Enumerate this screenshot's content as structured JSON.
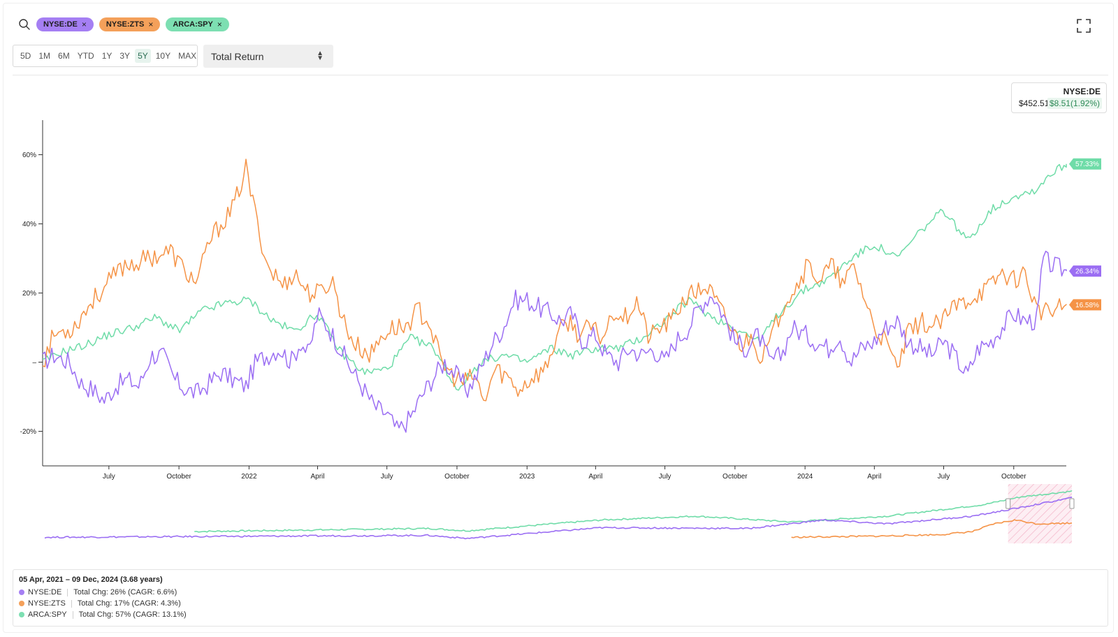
{
  "search": {
    "chips": [
      {
        "label": "NYSE:DE",
        "color": "#a57ff3"
      },
      {
        "label": "NYSE:ZTS",
        "color": "#f4a05a"
      },
      {
        "label": "ARCA:SPY",
        "color": "#7ddfb2"
      }
    ],
    "close_glyph": "×"
  },
  "controls": {
    "ranges": [
      "5D",
      "1M",
      "6M",
      "YTD",
      "1Y",
      "3Y",
      "5Y",
      "10Y",
      "MAX"
    ],
    "active_range": "5Y",
    "mode_select": "Total Return"
  },
  "tooltip": {
    "symbol": "NYSE:DE",
    "price": "$452.51",
    "change": "$8.51(1.92%)"
  },
  "colors": {
    "de": "#9b6ef3",
    "zts": "#f59346",
    "spy": "#6fdca8"
  },
  "chart_data": {
    "type": "line",
    "x_range": [
      "2021-04-05",
      "2024-12-09"
    ],
    "ylim": [
      -30,
      70
    ],
    "y_ticks": [
      60,
      40,
      20,
      0,
      -20
    ],
    "y_tick_labels": [
      "60%",
      "40%",
      "20%",
      "–",
      "-20%"
    ],
    "x_ticks": [
      {
        "date": "2021-07-01",
        "label": "July"
      },
      {
        "date": "2021-10-01",
        "label": "October"
      },
      {
        "date": "2022-01-01",
        "label": "2022"
      },
      {
        "date": "2022-04-01",
        "label": "April"
      },
      {
        "date": "2022-07-01",
        "label": "July"
      },
      {
        "date": "2022-10-01",
        "label": "October"
      },
      {
        "date": "2023-01-01",
        "label": "2023"
      },
      {
        "date": "2023-04-01",
        "label": "April"
      },
      {
        "date": "2023-07-01",
        "label": "July"
      },
      {
        "date": "2023-10-01",
        "label": "October"
      },
      {
        "date": "2024-01-01",
        "label": "2024"
      },
      {
        "date": "2024-04-01",
        "label": "April"
      },
      {
        "date": "2024-07-01",
        "label": "July"
      },
      {
        "date": "2024-10-01",
        "label": "October"
      }
    ],
    "series": [
      {
        "name": "ARCA:SPY",
        "end_label": "57.33%",
        "points": [
          [
            "2021-04-05",
            0
          ],
          [
            "2021-05-01",
            3
          ],
          [
            "2021-06-01",
            5
          ],
          [
            "2021-07-01",
            8
          ],
          [
            "2021-08-01",
            10
          ],
          [
            "2021-09-01",
            13
          ],
          [
            "2021-10-01",
            9
          ],
          [
            "2021-11-01",
            15
          ],
          [
            "2021-12-01",
            17
          ],
          [
            "2022-01-01",
            18
          ],
          [
            "2022-02-01",
            12
          ],
          [
            "2022-03-01",
            9
          ],
          [
            "2022-04-01",
            14
          ],
          [
            "2022-05-01",
            3
          ],
          [
            "2022-06-01",
            -3
          ],
          [
            "2022-07-01",
            -2
          ],
          [
            "2022-08-01",
            7
          ],
          [
            "2022-09-01",
            4
          ],
          [
            "2022-10-01",
            -8
          ],
          [
            "2022-11-01",
            0
          ],
          [
            "2022-12-01",
            2
          ],
          [
            "2023-01-01",
            0
          ],
          [
            "2023-02-01",
            4
          ],
          [
            "2023-03-01",
            2
          ],
          [
            "2023-04-01",
            4
          ],
          [
            "2023-05-01",
            4
          ],
          [
            "2023-06-01",
            7
          ],
          [
            "2023-07-01",
            12
          ],
          [
            "2023-08-01",
            18
          ],
          [
            "2023-09-01",
            13
          ],
          [
            "2023-10-01",
            10
          ],
          [
            "2023-11-01",
            6
          ],
          [
            "2023-12-01",
            15
          ],
          [
            "2024-01-01",
            21
          ],
          [
            "2024-02-01",
            24
          ],
          [
            "2024-03-01",
            30
          ],
          [
            "2024-04-01",
            34
          ],
          [
            "2024-05-01",
            30
          ],
          [
            "2024-06-01",
            38
          ],
          [
            "2024-07-01",
            44
          ],
          [
            "2024-08-01",
            35
          ],
          [
            "2024-09-01",
            44
          ],
          [
            "2024-10-01",
            48
          ],
          [
            "2024-11-01",
            50
          ],
          [
            "2024-11-15",
            54
          ],
          [
            "2024-12-09",
            57.33
          ]
        ]
      },
      {
        "name": "NYSE:ZTS",
        "end_label": "16.58%",
        "points": [
          [
            "2021-04-05",
            0
          ],
          [
            "2021-04-20",
            8
          ],
          [
            "2021-05-15",
            10
          ],
          [
            "2021-06-10",
            18
          ],
          [
            "2021-07-01",
            23
          ],
          [
            "2021-07-20",
            28
          ],
          [
            "2021-08-10",
            29
          ],
          [
            "2021-09-01",
            31
          ],
          [
            "2021-09-20",
            32
          ],
          [
            "2021-10-10",
            26
          ],
          [
            "2021-10-25",
            23
          ],
          [
            "2021-11-10",
            35
          ],
          [
            "2021-11-25",
            40
          ],
          [
            "2021-12-10",
            44
          ],
          [
            "2021-12-28",
            56
          ],
          [
            "2022-01-10",
            42
          ],
          [
            "2022-01-25",
            28
          ],
          [
            "2022-02-15",
            22
          ],
          [
            "2022-03-01",
            26
          ],
          [
            "2022-03-20",
            20
          ],
          [
            "2022-04-05",
            20
          ],
          [
            "2022-04-20",
            24
          ],
          [
            "2022-05-05",
            12
          ],
          [
            "2022-05-20",
            5
          ],
          [
            "2022-06-10",
            2
          ],
          [
            "2022-06-25",
            8
          ],
          [
            "2022-07-10",
            10
          ],
          [
            "2022-07-25",
            10
          ],
          [
            "2022-08-10",
            15
          ],
          [
            "2022-08-25",
            12
          ],
          [
            "2022-09-10",
            0
          ],
          [
            "2022-09-25",
            -4
          ],
          [
            "2022-10-10",
            -6
          ],
          [
            "2022-10-25",
            -4
          ],
          [
            "2022-11-05",
            -12
          ],
          [
            "2022-11-20",
            -2
          ],
          [
            "2022-12-05",
            -4
          ],
          [
            "2022-12-20",
            -8
          ],
          [
            "2023-01-10",
            -4
          ],
          [
            "2023-01-25",
            -2
          ],
          [
            "2023-02-10",
            8
          ],
          [
            "2023-02-25",
            12
          ],
          [
            "2023-03-10",
            8
          ],
          [
            "2023-03-25",
            10
          ],
          [
            "2023-04-10",
            7
          ],
          [
            "2023-04-25",
            15
          ],
          [
            "2023-05-10",
            13
          ],
          [
            "2023-05-25",
            18
          ],
          [
            "2023-06-10",
            7
          ],
          [
            "2023-06-25",
            10
          ],
          [
            "2023-07-10",
            12
          ],
          [
            "2023-07-25",
            18
          ],
          [
            "2023-08-10",
            20
          ],
          [
            "2023-08-25",
            22
          ],
          [
            "2023-09-10",
            16
          ],
          [
            "2023-09-25",
            10
          ],
          [
            "2023-10-10",
            5
          ],
          [
            "2023-10-25",
            8
          ],
          [
            "2023-11-05",
            0
          ],
          [
            "2023-11-20",
            8
          ],
          [
            "2023-12-05",
            18
          ],
          [
            "2023-12-20",
            22
          ],
          [
            "2024-01-05",
            28
          ],
          [
            "2024-01-20",
            24
          ],
          [
            "2024-02-05",
            28
          ],
          [
            "2024-02-20",
            22
          ],
          [
            "2024-03-05",
            28
          ],
          [
            "2024-03-20",
            18
          ],
          [
            "2024-04-01",
            10
          ],
          [
            "2024-04-15",
            6
          ],
          [
            "2024-05-01",
            -2
          ],
          [
            "2024-05-15",
            8
          ],
          [
            "2024-06-01",
            12
          ],
          [
            "2024-06-15",
            10
          ],
          [
            "2024-07-01",
            12
          ],
          [
            "2024-07-15",
            16
          ],
          [
            "2024-08-01",
            18
          ],
          [
            "2024-08-15",
            20
          ],
          [
            "2024-09-01",
            22
          ],
          [
            "2024-09-15",
            26
          ],
          [
            "2024-10-01",
            24
          ],
          [
            "2024-10-15",
            26
          ],
          [
            "2024-11-01",
            15
          ],
          [
            "2024-11-15",
            14
          ],
          [
            "2024-12-09",
            16.58
          ]
        ]
      },
      {
        "name": "NYSE:DE",
        "end_label": "26.34%",
        "points": [
          [
            "2021-04-05",
            0
          ],
          [
            "2021-04-20",
            2
          ],
          [
            "2021-05-10",
            0
          ],
          [
            "2021-05-25",
            -6
          ],
          [
            "2021-06-10",
            -8
          ],
          [
            "2021-06-25",
            -11
          ],
          [
            "2021-07-10",
            -7
          ],
          [
            "2021-07-25",
            -5
          ],
          [
            "2021-08-10",
            -7
          ],
          [
            "2021-08-25",
            2
          ],
          [
            "2021-09-10",
            2
          ],
          [
            "2021-09-25",
            -5
          ],
          [
            "2021-10-10",
            -8
          ],
          [
            "2021-10-25",
            -9
          ],
          [
            "2021-11-10",
            -6
          ],
          [
            "2021-11-25",
            -3
          ],
          [
            "2021-12-10",
            -5
          ],
          [
            "2021-12-28",
            -7
          ],
          [
            "2022-01-10",
            0
          ],
          [
            "2022-01-25",
            2
          ],
          [
            "2022-02-10",
            4
          ],
          [
            "2022-02-25",
            0
          ],
          [
            "2022-03-10",
            6
          ],
          [
            "2022-03-20",
            2
          ],
          [
            "2022-04-01",
            14
          ],
          [
            "2022-04-15",
            10
          ],
          [
            "2022-05-01",
            4
          ],
          [
            "2022-05-15",
            -2
          ],
          [
            "2022-06-01",
            -8
          ],
          [
            "2022-06-15",
            -13
          ],
          [
            "2022-07-01",
            -15
          ],
          [
            "2022-07-15",
            -20
          ],
          [
            "2022-08-01",
            -16
          ],
          [
            "2022-08-15",
            -10
          ],
          [
            "2022-09-01",
            -4
          ],
          [
            "2022-09-15",
            0
          ],
          [
            "2022-10-01",
            -4
          ],
          [
            "2022-10-15",
            -8
          ],
          [
            "2022-11-01",
            -2
          ],
          [
            "2022-11-15",
            5
          ],
          [
            "2022-12-01",
            10
          ],
          [
            "2022-12-15",
            18
          ],
          [
            "2023-01-01",
            18
          ],
          [
            "2023-01-15",
            16
          ],
          [
            "2023-02-01",
            14
          ],
          [
            "2023-02-15",
            12
          ],
          [
            "2023-03-01",
            14
          ],
          [
            "2023-03-15",
            6
          ],
          [
            "2023-04-01",
            8
          ],
          [
            "2023-04-15",
            2
          ],
          [
            "2023-05-01",
            0
          ],
          [
            "2023-05-15",
            4
          ],
          [
            "2023-06-01",
            2
          ],
          [
            "2023-06-15",
            4
          ],
          [
            "2023-07-01",
            0
          ],
          [
            "2023-07-15",
            6
          ],
          [
            "2023-08-01",
            10
          ],
          [
            "2023-08-15",
            16
          ],
          [
            "2023-09-01",
            20
          ],
          [
            "2023-09-15",
            14
          ],
          [
            "2023-10-01",
            6
          ],
          [
            "2023-10-15",
            4
          ],
          [
            "2023-11-01",
            8
          ],
          [
            "2023-11-15",
            0
          ],
          [
            "2023-12-01",
            2
          ],
          [
            "2023-12-15",
            10
          ],
          [
            "2024-01-01",
            8
          ],
          [
            "2024-01-15",
            6
          ],
          [
            "2024-02-01",
            4
          ],
          [
            "2024-02-15",
            8
          ],
          [
            "2024-03-01",
            0
          ],
          [
            "2024-03-15",
            4
          ],
          [
            "2024-04-01",
            6
          ],
          [
            "2024-04-15",
            10
          ],
          [
            "2024-05-01",
            12
          ],
          [
            "2024-05-15",
            6
          ],
          [
            "2024-06-01",
            4
          ],
          [
            "2024-06-15",
            2
          ],
          [
            "2024-07-01",
            6
          ],
          [
            "2024-07-15",
            2
          ],
          [
            "2024-08-01",
            -4
          ],
          [
            "2024-08-15",
            4
          ],
          [
            "2024-09-01",
            6
          ],
          [
            "2024-09-15",
            10
          ],
          [
            "2024-10-01",
            14
          ],
          [
            "2024-10-15",
            12
          ],
          [
            "2024-11-01",
            12
          ],
          [
            "2024-11-08",
            30
          ],
          [
            "2024-11-20",
            28
          ],
          [
            "2024-12-09",
            26.34
          ]
        ]
      }
    ],
    "navigator": {
      "selected_range": [
        "2024-06-10",
        "2024-12-09"
      ]
    }
  },
  "summary": {
    "period": "05 Apr, 2021 – 09 Dec, 2024 (3.68 years)",
    "rows": [
      {
        "symbol": "NYSE:DE",
        "text": "Total Chg: 26% (CAGR: 6.6%)"
      },
      {
        "symbol": "NYSE:ZTS",
        "text": "Total Chg: 17% (CAGR: 4.3%)"
      },
      {
        "symbol": "ARCA:SPY",
        "text": "Total Chg: 57% (CAGR: 13.1%)"
      }
    ]
  }
}
